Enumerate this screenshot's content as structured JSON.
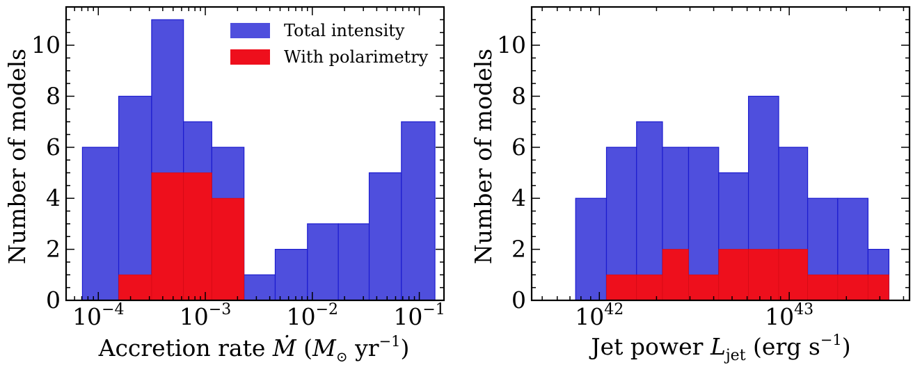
{
  "chart_data": [
    {
      "type": "bar",
      "xscale": "log",
      "xlim": [
        5e-05,
        0.17
      ],
      "ylim": [
        0,
        11.5
      ],
      "xticks": [
        0.0001,
        0.001,
        0.01,
        0.1
      ],
      "xtick_labels": [
        {
          "base": "10",
          "exp": "−4"
        },
        {
          "base": "10",
          "exp": "−3"
        },
        {
          "base": "10",
          "exp": "−2"
        },
        {
          "base": "10",
          "exp": "−1"
        }
      ],
      "yticks": [
        0,
        2,
        4,
        6,
        8,
        10
      ],
      "xlabel": {
        "pre": "Accretion rate ",
        "sym": "Ṁ",
        "unit_open": " (",
        "unit_M": "M",
        "unit_sun": "⊙",
        "unit_yr": " yr",
        "unit_exp": "−1",
        "unit_close": ")"
      },
      "ylabel": "Number of models",
      "bin_edges": [
        7.1e-05,
        0.000155,
        0.000315,
        0.000625,
        0.00115,
        0.0023,
        0.0045,
        0.009,
        0.0175,
        0.034,
        0.068,
        0.14
      ],
      "series": [
        {
          "name": "Total intensity",
          "color": "#4f4fdd",
          "values": [
            6,
            8,
            11,
            7,
            6,
            1,
            2,
            3,
            3,
            5,
            7
          ]
        },
        {
          "name": "With polarimetry",
          "color": "#ee0f1c",
          "values": [
            0,
            1,
            5,
            5,
            4,
            0,
            0,
            0,
            0,
            0,
            0
          ]
        }
      ],
      "legend": {
        "position": "top-right",
        "entries": [
          "Total intensity",
          "With polarimetry"
        ]
      }
    },
    {
      "type": "bar",
      "xscale": "log",
      "xlim": [
        4.4e+41,
        4.3e+43
      ],
      "ylim": [
        0,
        11.5
      ],
      "xticks": [
        1e+42,
        1e+43
      ],
      "xtick_labels": [
        {
          "base": "10",
          "exp": "42"
        },
        {
          "base": "10",
          "exp": "43"
        }
      ],
      "yticks": [
        0,
        2,
        4,
        6,
        8,
        10
      ],
      "xlabel": {
        "pre": "Jet power ",
        "sym": "L",
        "sub": "jet",
        "unit": " (erg s",
        "unit_exp": "−1",
        "unit_close": ")"
      },
      "ylabel": "Number of models",
      "bin_edges": [
        7.5e+41,
        1.09e+42,
        1.57e+42,
        2.15e+42,
        2.95e+42,
        4.25e+42,
        6.1e+42,
        8.8e+42,
        1.25e+43,
        1.8e+43,
        2.6e+43,
        3.35e+43
      ],
      "series": [
        {
          "name": "Total intensity",
          "color": "#4f4fdd",
          "values": [
            4,
            6,
            7,
            6,
            6,
            5,
            8,
            6,
            4,
            4,
            2
          ]
        },
        {
          "name": "With polarimetry",
          "color": "#ee0f1c",
          "values": [
            0,
            1,
            1,
            2,
            1,
            2,
            2,
            2,
            1,
            1,
            1
          ]
        }
      ]
    }
  ]
}
